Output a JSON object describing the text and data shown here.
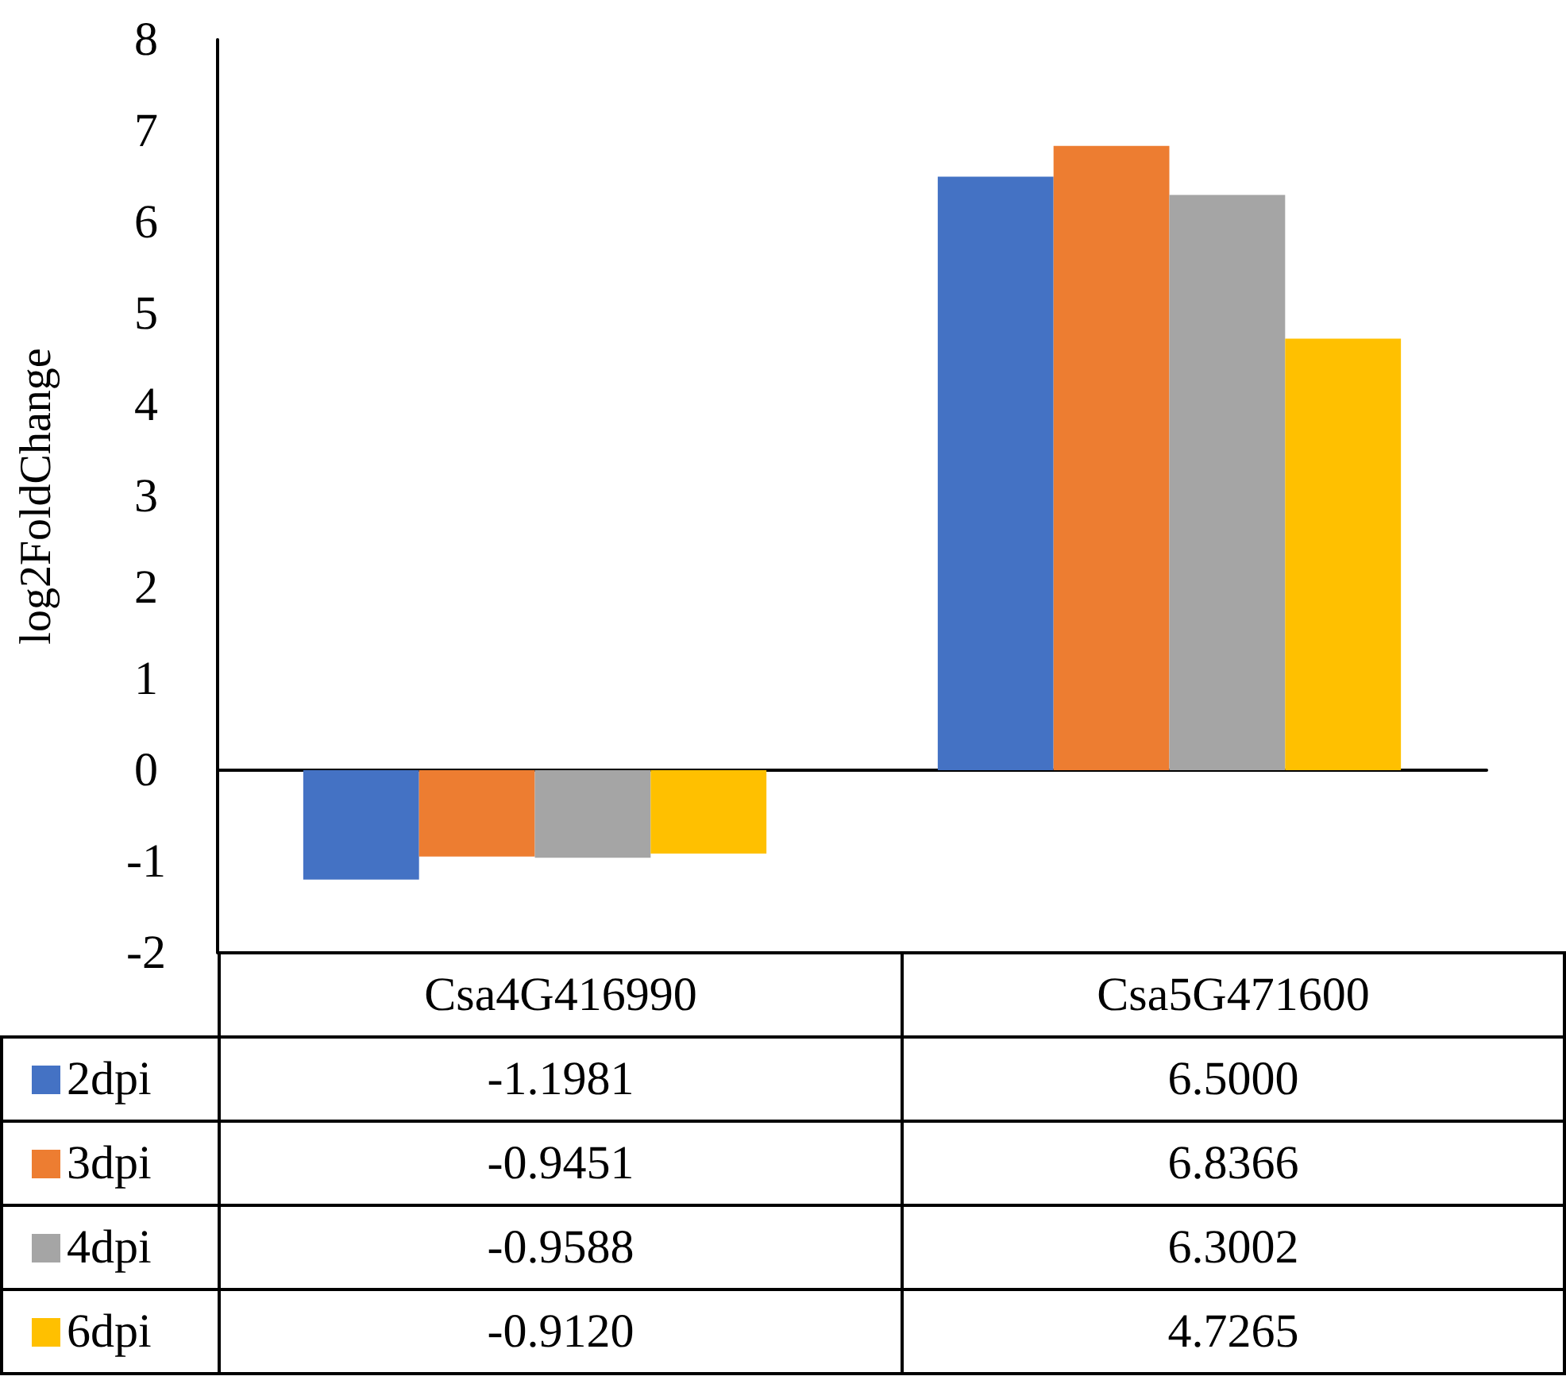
{
  "chart_data": {
    "type": "bar",
    "ylabel": "log2FoldChange",
    "categories": [
      "Csa4G416990",
      "Csa5G471600"
    ],
    "series": [
      {
        "name": "2dpi",
        "color": "#4472c4",
        "values": [
          -1.1981,
          6.5
        ],
        "value_labels": [
          "-1.1981",
          "6.5000"
        ]
      },
      {
        "name": "3dpi",
        "color": "#ed7d31",
        "values": [
          -0.9451,
          6.8366
        ],
        "value_labels": [
          "-0.9451",
          "6.8366"
        ]
      },
      {
        "name": "4dpi",
        "color": "#a5a5a5",
        "values": [
          -0.9588,
          6.3002
        ],
        "value_labels": [
          "-0.9588",
          "6.3002"
        ]
      },
      {
        "name": "6dpi",
        "color": "#ffc000",
        "values": [
          -0.912,
          4.7265
        ],
        "value_labels": [
          "-0.9120",
          "4.7265"
        ]
      }
    ],
    "ylim": [
      -2,
      8
    ],
    "yticks": [
      -2,
      -1,
      0,
      1,
      2,
      3,
      4,
      5,
      6,
      7,
      8
    ],
    "legend": "bottom"
  }
}
